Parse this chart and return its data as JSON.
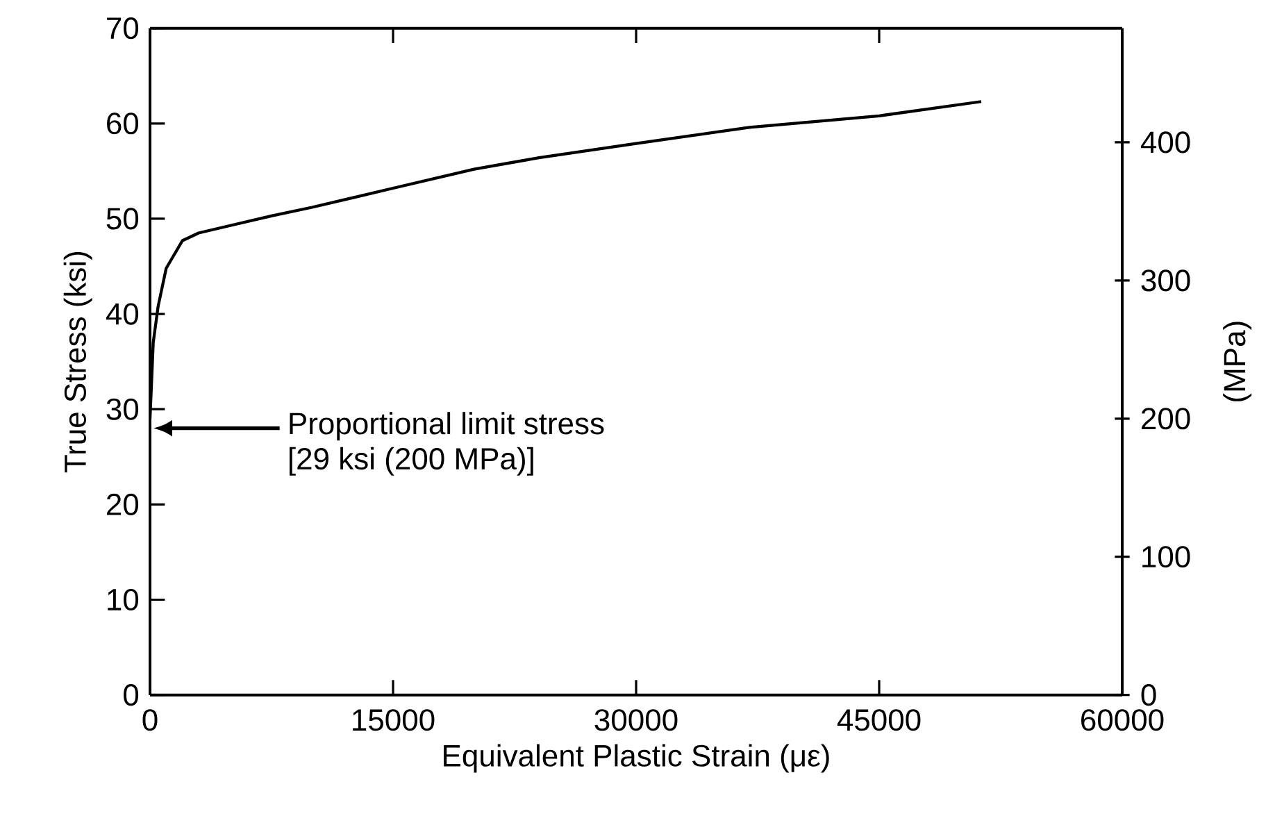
{
  "chart_data": {
    "type": "line",
    "xlabel": "Equivalent Plastic Strain (με)",
    "ylabel": "True Stress (ksi)",
    "y2label": "(MPa)",
    "series": [
      {
        "color": "#000000",
        "x": [
          0,
          200,
          500,
          1000,
          2000,
          3000,
          5000,
          7500,
          10000,
          15000,
          20000,
          24000,
          30000,
          37000,
          45000,
          51300
        ],
        "values": [
          29,
          37,
          40.8,
          44.8,
          47.7,
          48.5,
          49.3,
          50.3,
          51.2,
          53.2,
          55.2,
          56.4,
          57.9,
          59.6,
          60.8,
          62.3
        ]
      }
    ],
    "xlim": [
      0,
      60000
    ],
    "xticks": [
      0,
      15000,
      30000,
      45000,
      60000
    ],
    "ylim": [
      0,
      70
    ],
    "yticks": [
      0,
      10,
      20,
      30,
      40,
      50,
      60,
      70
    ],
    "y2lim": [
      0,
      482.6
    ],
    "y2ticks": [
      0,
      100,
      200,
      300,
      400
    ],
    "annotations": [
      "Proportional limit stress",
      "[29 ksi (200 MPa)]"
    ],
    "marker": "none",
    "line_style": "solid"
  }
}
